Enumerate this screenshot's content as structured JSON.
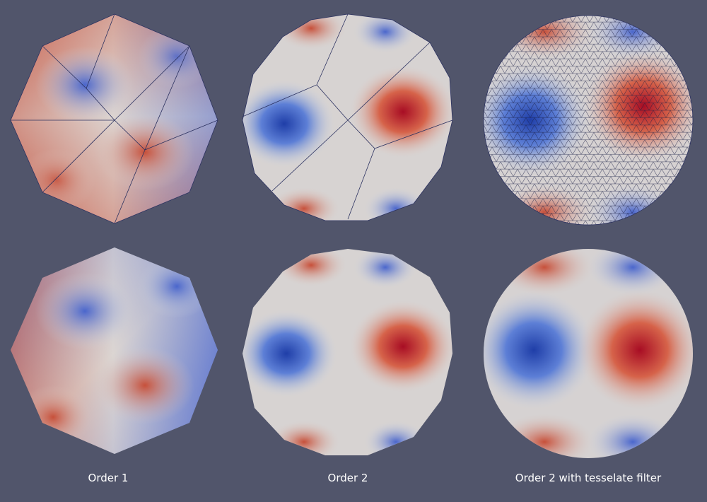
{
  "background": "#51556b",
  "colormap": {
    "low": "#3b4cc0",
    "mid": "#dddcdc",
    "high": "#b40426"
  },
  "captions": {
    "order1": "Order 1",
    "order2": "Order 2",
    "order2_tess": "Order 2 with tesselate filter"
  }
}
